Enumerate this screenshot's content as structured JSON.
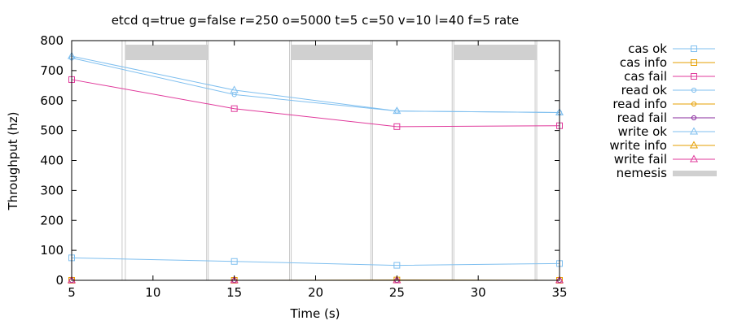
{
  "chart_data": {
    "type": "line",
    "title": "etcd q=true g=false r=250 o=5000 t=5 c=50 v=10 l=40 f=5 rate",
    "xlabel": "Time (s)",
    "ylabel": "Throughput (hz)",
    "xlim": [
      5,
      35
    ],
    "ylim": [
      0,
      800
    ],
    "xticks": [
      5,
      10,
      15,
      20,
      25,
      30,
      35
    ],
    "yticks": [
      0,
      100,
      200,
      300,
      400,
      500,
      600,
      700,
      800
    ],
    "grid": false,
    "legend_position": "right",
    "nemesis": {
      "name": "nemesis",
      "color": "#d0d0d0",
      "windows": [
        [
          8.3,
          13.4
        ],
        [
          18.5,
          23.5
        ],
        [
          28.5,
          33.6
        ]
      ],
      "lines": [
        8.1,
        8.3,
        13.3,
        13.4,
        18.4,
        18.5,
        23.4,
        23.5,
        28.4,
        28.5,
        33.5,
        33.6
      ]
    },
    "series": [
      {
        "name": "cas ok",
        "color": "#7fbfef",
        "marker": "square",
        "x": [
          5,
          15,
          25,
          35
        ],
        "y": [
          75,
          63,
          50,
          56
        ]
      },
      {
        "name": "cas info",
        "color": "#e69f00",
        "marker": "square",
        "x": [
          5,
          15,
          25,
          35
        ],
        "y": [
          0,
          0,
          1,
          0
        ]
      },
      {
        "name": "cas fail",
        "color": "#e0399b",
        "marker": "square",
        "x": [
          5,
          15,
          25,
          35
        ],
        "y": [
          670,
          573,
          513,
          516
        ]
      },
      {
        "name": "read ok",
        "color": "#7fbfef",
        "marker": "circle",
        "x": [
          5,
          15,
          25,
          35
        ],
        "y": [
          742,
          620,
          565,
          560
        ]
      },
      {
        "name": "read info",
        "color": "#e69f00",
        "marker": "circle",
        "x": [
          5,
          15,
          25,
          35
        ],
        "y": [
          0,
          0,
          0,
          0
        ]
      },
      {
        "name": "read fail",
        "color": "#8a2b9e",
        "marker": "circle",
        "x": [
          5,
          15,
          25,
          35
        ],
        "y": [
          0,
          0,
          0,
          0
        ]
      },
      {
        "name": "write ok",
        "color": "#7fbfef",
        "marker": "triangle",
        "x": [
          5,
          15,
          25,
          35
        ],
        "y": [
          748,
          635,
          565,
          560
        ]
      },
      {
        "name": "write info",
        "color": "#e69f00",
        "marker": "triangle",
        "x": [
          5,
          15,
          25,
          35
        ],
        "y": [
          0,
          0,
          0,
          0
        ]
      },
      {
        "name": "write fail",
        "color": "#e0399b",
        "marker": "triangle",
        "x": [
          5,
          15,
          25,
          35
        ],
        "y": [
          0,
          0,
          0,
          0
        ]
      }
    ]
  }
}
